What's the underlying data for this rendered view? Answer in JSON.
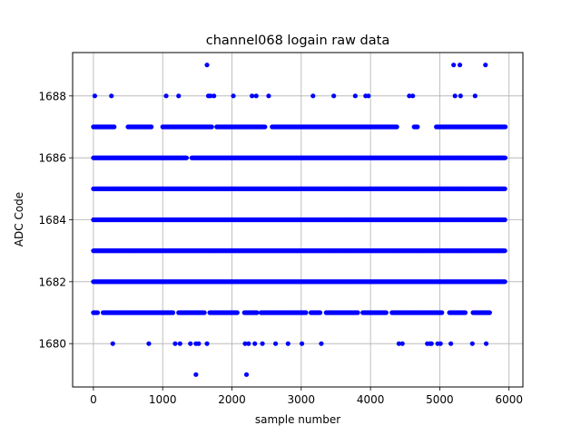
{
  "chart_data": {
    "type": "scatter",
    "title": "channel068 logain raw data",
    "xlabel": "sample number",
    "ylabel": "ADC Code",
    "xlim": [
      -300,
      6200
    ],
    "ylim": [
      1678.6,
      1689.4
    ],
    "x_ticks": [
      0,
      1000,
      2000,
      3000,
      4000,
      5000,
      6000
    ],
    "y_ticks": [
      1680,
      1682,
      1684,
      1686,
      1688
    ],
    "grid": true,
    "marker_color": "#0000ff",
    "sample_count": 6000,
    "series": [
      {
        "points": [
          {
            "y": 1679,
            "x": [
              1480,
              2210
            ]
          },
          {
            "y": 1680,
            "x": [
              280,
              800,
              1180,
              1250,
              1400,
              1480,
              1520,
              1640,
              2190,
              2240,
              2330,
              2440,
              2630,
              2810,
              3010,
              3290,
              4410,
              4460,
              4820,
              4860,
              4880,
              4970,
              5010,
              5160,
              5470,
              5670
            ]
          },
          {
            "y": 1688,
            "x": [
              20,
              260,
              1050,
              1230,
              1660,
              1690,
              1740,
              2020,
              2290,
              2350,
              2530,
              3170,
              3470,
              3780,
              3930,
              3970,
              4560,
              4610,
              5220,
              5300,
              5510
            ]
          },
          {
            "y": 1689,
            "x": [
              1640,
              5200,
              5290,
              5660
            ]
          }
        ],
        "dense_ranges": [
          {
            "y": 1681,
            "ranges": [
              [
                0,
                60
              ],
              [
                140,
                1150
              ],
              [
                1230,
                1610
              ],
              [
                1680,
                2080
              ],
              [
                2180,
                2360
              ],
              [
                2420,
                3070
              ],
              [
                3140,
                3280
              ],
              [
                3360,
                3820
              ],
              [
                3890,
                4230
              ],
              [
                4310,
                5030
              ],
              [
                5140,
                5370
              ],
              [
                5480,
                5720
              ]
            ]
          },
          {
            "y": 1682,
            "ranges": [
              [
                0,
                5950
              ]
            ]
          },
          {
            "y": 1683,
            "ranges": [
              [
                0,
                5950
              ]
            ]
          },
          {
            "y": 1684,
            "ranges": [
              [
                0,
                5950
              ]
            ]
          },
          {
            "y": 1685,
            "ranges": [
              [
                0,
                5950
              ]
            ]
          },
          {
            "y": 1686,
            "ranges": [
              [
                0,
                1350
              ],
              [
                1420,
                5950
              ]
            ]
          },
          {
            "y": 1687,
            "ranges": [
              [
                0,
                300
              ],
              [
                500,
                840
              ],
              [
                1000,
                1710
              ],
              [
                1780,
                2480
              ],
              [
                2580,
                4380
              ],
              [
                4630,
                4680
              ],
              [
                4950,
                5950
              ]
            ]
          }
        ]
      }
    ]
  }
}
